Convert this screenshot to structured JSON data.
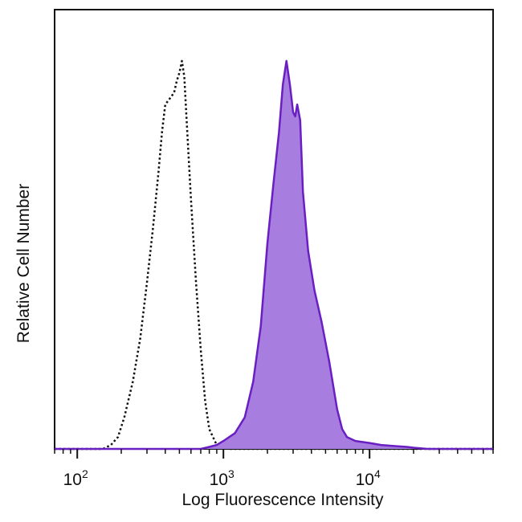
{
  "chart_data": {
    "type": "area",
    "title": "",
    "xlabel": "Log Fluorescence Intensity",
    "ylabel": "Relative Cell Number",
    "x_scale": "log",
    "xlim": [
      70,
      70000
    ],
    "ylim": [
      0,
      100
    ],
    "grid": false,
    "legend": "none",
    "x_ticks": [
      {
        "value": 100,
        "base": "10",
        "exp": "2"
      },
      {
        "value": 1000,
        "base": "10",
        "exp": "3"
      },
      {
        "value": 10000,
        "base": "10",
        "exp": "4"
      }
    ],
    "series": [
      {
        "style": "dotted-outline",
        "color": "#111111",
        "x": [
          70,
          150,
          170,
          190,
          210,
          240,
          270,
          300,
          330,
          360,
          380,
          400,
          420,
          440,
          460,
          480,
          500,
          520,
          540,
          560,
          600,
          650,
          700,
          750,
          800,
          900,
          1000,
          1100,
          70000
        ],
        "y": [
          0,
          0,
          1,
          3,
          8,
          17,
          28,
          42,
          56,
          70,
          80,
          87,
          88,
          89,
          90,
          93,
          95,
          98,
          94,
          83,
          63,
          42,
          25,
          12,
          5,
          1,
          0.5,
          0,
          0
        ]
      },
      {
        "style": "filled",
        "color": "#6a1fc2",
        "fill": "#a87de0",
        "x": [
          70,
          700,
          800,
          900,
          1000,
          1200,
          1400,
          1600,
          1800,
          2000,
          2200,
          2400,
          2550,
          2700,
          2850,
          3000,
          3100,
          3200,
          3350,
          3500,
          3800,
          4200,
          4700,
          5300,
          6000,
          6500,
          7000,
          8000,
          10000,
          12000,
          15000,
          18000,
          20000,
          25000,
          70000
        ],
        "y": [
          0,
          0,
          0.5,
          1,
          2,
          4,
          8,
          17,
          31,
          52,
          67,
          80,
          92,
          98,
          92,
          85,
          84,
          87,
          83,
          65,
          50,
          40,
          32,
          22,
          10,
          5,
          3,
          2,
          1.5,
          1,
          0.7,
          0.5,
          0.3,
          0,
          0
        ]
      }
    ]
  }
}
